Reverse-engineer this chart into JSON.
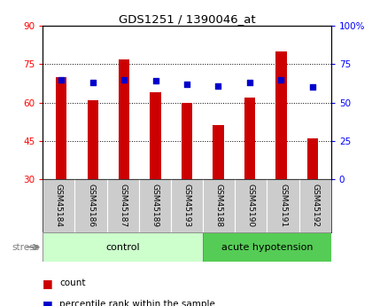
{
  "title": "GDS1251 / 1390046_at",
  "categories": [
    "GSM45184",
    "GSM45186",
    "GSM45187",
    "GSM45189",
    "GSM45193",
    "GSM45188",
    "GSM45190",
    "GSM45191",
    "GSM45192"
  ],
  "count_values": [
    70,
    61,
    77,
    64,
    60,
    51,
    62,
    80,
    46
  ],
  "percentile_values": [
    65,
    63,
    65,
    64,
    62,
    61,
    63,
    65,
    60
  ],
  "ylim_left": [
    30,
    90
  ],
  "ylim_right": [
    0,
    100
  ],
  "yticks_left": [
    30,
    45,
    60,
    75,
    90
  ],
  "yticks_right": [
    0,
    25,
    50,
    75,
    100
  ],
  "ytick_labels_right": [
    "0",
    "25",
    "50",
    "75",
    "100%"
  ],
  "bar_color": "#cc0000",
  "dot_color": "#0000cc",
  "bg_color": "#ffffff",
  "tick_area_color": "#cccccc",
  "n_control": 5,
  "n_acute": 4,
  "control_label": "control",
  "acute_label": "acute hypotension",
  "stress_label": "stress",
  "group_bg_control": "#ccffcc",
  "group_bg_acute": "#55cc55",
  "legend_count": "count",
  "legend_percentile": "percentile rank within the sample",
  "bar_width": 0.35
}
